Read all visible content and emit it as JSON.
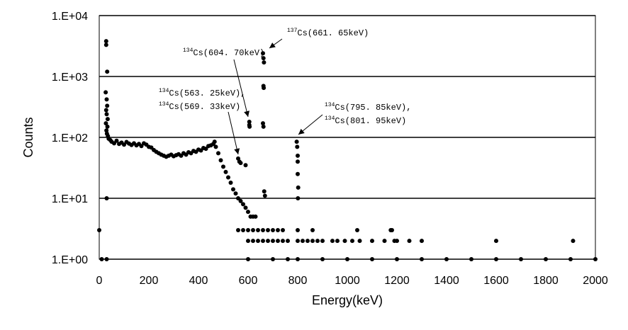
{
  "chart_data": {
    "type": "scatter",
    "title": "",
    "xlabel": "Energy(keV)",
    "ylabel": "Counts",
    "xlim": [
      0,
      2000
    ],
    "ylim": [
      1,
      10000
    ],
    "yscale": "log",
    "grid": "horizontal",
    "legend": "none",
    "marker_color": "#000000",
    "x_ticks": [
      "0",
      "200",
      "400",
      "600",
      "800",
      "1000",
      "1200",
      "1400",
      "1600",
      "1800",
      "2000"
    ],
    "y_ticks": [
      "1.E+00",
      "1.E+01",
      "1.E+02",
      "1.E+03",
      "1.E+04"
    ],
    "annotations": [
      {
        "isotope": "137",
        "text": "Cs(661. 65keV)",
        "x": 661.65,
        "y": 2400
      },
      {
        "isotope": "134",
        "text": "Cs(604. 70keV)",
        "x": 604.7,
        "y": 180
      },
      {
        "isotope": "134",
        "text": "Cs(563. 25keV),",
        "x": 565,
        "y": 45
      },
      {
        "isotope": "134",
        "text": "Cs(569. 33keV)",
        "x": 569.33,
        "y": 45
      },
      {
        "isotope": "134",
        "text": "Cs(795. 85keV),",
        "x": 796,
        "y": 85
      },
      {
        "isotope": "134",
        "text": "Cs(801. 95keV)",
        "x": 801.95,
        "y": 85
      }
    ],
    "points": [
      [
        0,
        3
      ],
      [
        10,
        1
      ],
      [
        30,
        10
      ],
      [
        28,
        3800
      ],
      [
        28,
        3300
      ],
      [
        32,
        1200
      ],
      [
        26,
        550
      ],
      [
        30,
        420
      ],
      [
        32,
        330
      ],
      [
        28,
        280
      ],
      [
        30,
        240
      ],
      [
        34,
        200
      ],
      [
        27,
        170
      ],
      [
        33,
        150
      ],
      [
        29,
        130
      ],
      [
        31,
        115
      ],
      [
        35,
        105
      ],
      [
        38,
        95
      ],
      [
        45,
        90
      ],
      [
        50,
        85
      ],
      [
        60,
        80
      ],
      [
        70,
        88
      ],
      [
        80,
        78
      ],
      [
        90,
        82
      ],
      [
        100,
        76
      ],
      [
        110,
        84
      ],
      [
        120,
        79
      ],
      [
        130,
        75
      ],
      [
        140,
        80
      ],
      [
        150,
        74
      ],
      [
        160,
        78
      ],
      [
        170,
        72
      ],
      [
        180,
        80
      ],
      [
        190,
        76
      ],
      [
        200,
        70
      ],
      [
        210,
        68
      ],
      [
        220,
        62
      ],
      [
        230,
        58
      ],
      [
        240,
        55
      ],
      [
        250,
        52
      ],
      [
        260,
        50
      ],
      [
        270,
        48
      ],
      [
        280,
        50
      ],
      [
        290,
        52
      ],
      [
        300,
        49
      ],
      [
        310,
        51
      ],
      [
        320,
        53
      ],
      [
        330,
        50
      ],
      [
        340,
        55
      ],
      [
        350,
        52
      ],
      [
        360,
        57
      ],
      [
        370,
        55
      ],
      [
        380,
        60
      ],
      [
        390,
        58
      ],
      [
        400,
        63
      ],
      [
        410,
        61
      ],
      [
        420,
        67
      ],
      [
        430,
        65
      ],
      [
        440,
        72
      ],
      [
        450,
        74
      ],
      [
        460,
        78
      ],
      [
        465,
        85
      ],
      [
        470,
        70
      ],
      [
        480,
        55
      ],
      [
        490,
        42
      ],
      [
        500,
        33
      ],
      [
        510,
        27
      ],
      [
        520,
        22
      ],
      [
        530,
        18
      ],
      [
        540,
        14
      ],
      [
        550,
        12
      ],
      [
        560,
        10
      ],
      [
        570,
        9
      ],
      [
        580,
        8
      ],
      [
        590,
        7
      ],
      [
        600,
        6
      ],
      [
        610,
        5
      ],
      [
        620,
        5
      ],
      [
        630,
        5
      ],
      [
        560,
        45
      ],
      [
        565,
        40
      ],
      [
        570,
        38
      ],
      [
        590,
        35
      ],
      [
        605,
        180
      ],
      [
        606,
        150
      ],
      [
        605,
        160
      ],
      [
        660,
        2400
      ],
      [
        662,
        2000
      ],
      [
        664,
        1700
      ],
      [
        662,
        700
      ],
      [
        663,
        650
      ],
      [
        660,
        170
      ],
      [
        662,
        150
      ],
      [
        665,
        13
      ],
      [
        668,
        11
      ],
      [
        796,
        85
      ],
      [
        798,
        70
      ],
      [
        800,
        50
      ],
      [
        800,
        40
      ],
      [
        800,
        25
      ],
      [
        802,
        15
      ],
      [
        801,
        10
      ],
      [
        560,
        3
      ],
      [
        580,
        3
      ],
      [
        600,
        3
      ],
      [
        620,
        3
      ],
      [
        640,
        3
      ],
      [
        660,
        3
      ],
      [
        680,
        3
      ],
      [
        700,
        3
      ],
      [
        720,
        3
      ],
      [
        740,
        3
      ],
      [
        800,
        3
      ],
      [
        860,
        3
      ],
      [
        1040,
        3
      ],
      [
        1175,
        3
      ],
      [
        1180,
        3
      ],
      [
        1910,
        2
      ],
      [
        600,
        2
      ],
      [
        620,
        2
      ],
      [
        640,
        2
      ],
      [
        660,
        2
      ],
      [
        680,
        2
      ],
      [
        700,
        2
      ],
      [
        720,
        2
      ],
      [
        740,
        2
      ],
      [
        760,
        2
      ],
      [
        800,
        2
      ],
      [
        820,
        2
      ],
      [
        840,
        2
      ],
      [
        860,
        2
      ],
      [
        880,
        2
      ],
      [
        900,
        2
      ],
      [
        940,
        2
      ],
      [
        960,
        2
      ],
      [
        990,
        2
      ],
      [
        1020,
        2
      ],
      [
        1050,
        2
      ],
      [
        1100,
        2
      ],
      [
        1150,
        2
      ],
      [
        1190,
        2
      ],
      [
        1200,
        2
      ],
      [
        1250,
        2
      ],
      [
        1300,
        2
      ],
      [
        1600,
        2
      ],
      [
        30,
        1
      ],
      [
        600,
        1
      ],
      [
        700,
        1
      ],
      [
        760,
        1
      ],
      [
        800,
        1
      ],
      [
        900,
        1
      ],
      [
        1000,
        1
      ],
      [
        1100,
        1
      ],
      [
        1200,
        1
      ],
      [
        1300,
        1
      ],
      [
        1400,
        1
      ],
      [
        1500,
        1
      ],
      [
        1600,
        1
      ],
      [
        1700,
        1
      ],
      [
        1800,
        1
      ],
      [
        1900,
        1
      ],
      [
        2000,
        1
      ]
    ]
  }
}
